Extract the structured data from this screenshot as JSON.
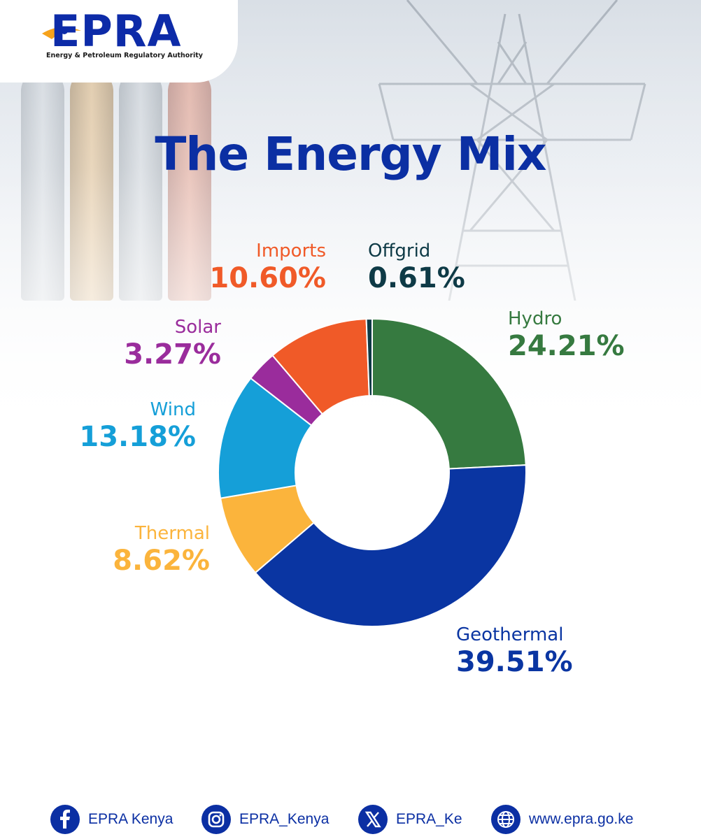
{
  "brand": {
    "logo_text": "EPRA",
    "logo_subtitle": "Energy & Petroleum Regulatory Authority"
  },
  "chart_data": {
    "type": "pie",
    "title": "The Energy Mix",
    "slices": [
      {
        "name": "Hydro",
        "value": 24.21,
        "label": "24.21%",
        "color": "#367a40"
      },
      {
        "name": "Geothermal",
        "value": 39.51,
        "label": "39.51%",
        "color": "#0a35a2"
      },
      {
        "name": "Thermal",
        "value": 8.62,
        "label": "8.62%",
        "color": "#fbb43c"
      },
      {
        "name": "Wind",
        "value": 13.18,
        "label": "13.18%",
        "color": "#159fd8"
      },
      {
        "name": "Solar",
        "value": 3.27,
        "label": "3.27%",
        "color": "#9a2c9c"
      },
      {
        "name": "Imports",
        "value": 10.6,
        "label": "10.60%",
        "color": "#f05a28"
      },
      {
        "name": "Offgrid",
        "value": 0.61,
        "label": "0.61%",
        "color": "#0e3a46"
      }
    ]
  },
  "footer": {
    "facebook": "EPRA Kenya",
    "instagram": "EPRA_Kenya",
    "x": "EPRA_Ke",
    "website": "www.epra.go.ke"
  },
  "icons": {
    "facebook": "facebook-icon",
    "instagram": "instagram-icon",
    "x": "x-icon",
    "website": "globe-icon"
  }
}
